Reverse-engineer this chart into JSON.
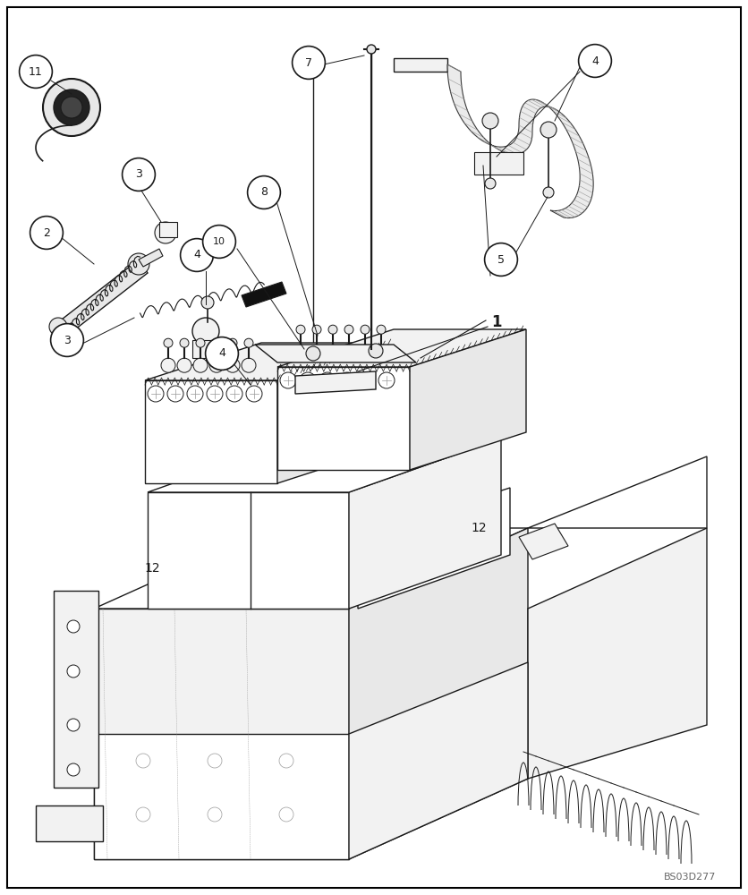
{
  "figure_width": 8.36,
  "figure_height": 10.0,
  "dpi": 100,
  "background_color": "#ffffff",
  "border_color": "#000000",
  "border_linewidth": 1.5,
  "watermark": "BS03D277",
  "watermark_color": "#666666",
  "watermark_fontsize": 8,
  "lw_main": 1.0,
  "lw_thin": 0.6,
  "lw_thick": 1.5,
  "dk": "#1a1a1a",
  "gray": "#999999",
  "lgray": "#cccccc",
  "face_white": "#ffffff",
  "face_light": "#f2f2f2",
  "face_med": "#e8e8e8",
  "circle_r": 0.022
}
